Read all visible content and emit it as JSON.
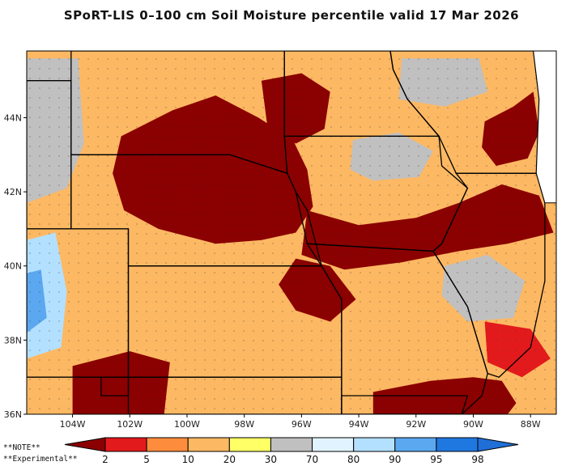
{
  "title": "SPoRT-LIS 0–100 cm Soil Moisture percentile valid 17 Mar 2026",
  "map": {
    "lon_range": [
      -105.6,
      -87.1
    ],
    "lat_range": [
      36.0,
      45.8
    ],
    "lat_ticks": [
      {
        "value": 36,
        "label": "36N"
      },
      {
        "value": 38,
        "label": "38N"
      },
      {
        "value": 40,
        "label": "40N"
      },
      {
        "value": 42,
        "label": "42N"
      },
      {
        "value": 44,
        "label": "44N"
      }
    ],
    "lon_ticks": [
      {
        "value": -104,
        "label": "104W"
      },
      {
        "value": -102,
        "label": "102W"
      },
      {
        "value": -100,
        "label": "100W"
      },
      {
        "value": -98,
        "label": "98W"
      },
      {
        "value": -96,
        "label": "96W"
      },
      {
        "value": -94,
        "label": "94W"
      },
      {
        "value": -92,
        "label": "92W"
      },
      {
        "value": -90,
        "label": "90W"
      },
      {
        "value": -88,
        "label": "88W"
      }
    ],
    "background_color": "#fdb863",
    "lake_color": "#ffffff",
    "regions": [
      {
        "name": "dry-core-south-dakota-nebraska",
        "color": "#8b0000",
        "poly": [
          [
            -102.3,
            43.5
          ],
          [
            -100.5,
            44.2
          ],
          [
            -99.0,
            44.6
          ],
          [
            -97.5,
            44.0
          ],
          [
            -96.3,
            43.4
          ],
          [
            -95.8,
            42.6
          ],
          [
            -95.6,
            41.6
          ],
          [
            -96.2,
            40.9
          ],
          [
            -97.4,
            40.7
          ],
          [
            -99.0,
            40.6
          ],
          [
            -101.0,
            41.0
          ],
          [
            -102.2,
            41.5
          ],
          [
            -102.6,
            42.5
          ]
        ]
      },
      {
        "name": "dry-core-mid-minnesota",
        "color": "#8b0000",
        "poly": [
          [
            -97.4,
            45.0
          ],
          [
            -96.0,
            45.2
          ],
          [
            -95.0,
            44.7
          ],
          [
            -95.2,
            43.7
          ],
          [
            -96.2,
            43.3
          ],
          [
            -97.2,
            43.8
          ]
        ]
      },
      {
        "name": "dry-band-iowa-illinois",
        "color": "#8b0000",
        "poly": [
          [
            -95.8,
            41.5
          ],
          [
            -94.0,
            41.1
          ],
          [
            -92.0,
            41.3
          ],
          [
            -90.5,
            41.7
          ],
          [
            -89.0,
            42.2
          ],
          [
            -87.7,
            41.9
          ],
          [
            -87.2,
            40.9
          ],
          [
            -88.8,
            40.6
          ],
          [
            -90.5,
            40.4
          ],
          [
            -92.5,
            40.1
          ],
          [
            -94.5,
            39.9
          ],
          [
            -96.0,
            40.3
          ]
        ]
      },
      {
        "name": "dry-core-kansas-missouri",
        "color": "#8b0000",
        "poly": [
          [
            -96.2,
            40.2
          ],
          [
            -95.0,
            40.0
          ],
          [
            -94.1,
            39.1
          ],
          [
            -95.0,
            38.5
          ],
          [
            -96.2,
            38.8
          ],
          [
            -96.8,
            39.5
          ]
        ]
      },
      {
        "name": "dry-core-south",
        "color": "#8b0000",
        "poly": [
          [
            -104.0,
            37.3
          ],
          [
            -102.0,
            37.7
          ],
          [
            -100.6,
            37.4
          ],
          [
            -100.8,
            36.0
          ],
          [
            -104.0,
            36.0
          ]
        ]
      },
      {
        "name": "dry-core-bootheel",
        "color": "#8b0000",
        "poly": [
          [
            -93.5,
            36.6
          ],
          [
            -91.5,
            36.9
          ],
          [
            -90.0,
            37.0
          ],
          [
            -89.0,
            36.9
          ],
          [
            -88.5,
            36.3
          ],
          [
            -88.8,
            36.0
          ],
          [
            -93.5,
            36.0
          ]
        ]
      },
      {
        "name": "dry-east-wisconsin",
        "color": "#8b0000",
        "poly": [
          [
            -89.6,
            43.9
          ],
          [
            -88.6,
            44.3
          ],
          [
            -87.9,
            44.7
          ],
          [
            -87.7,
            43.6
          ],
          [
            -88.1,
            42.9
          ],
          [
            -89.2,
            42.7
          ],
          [
            -89.7,
            43.2
          ]
        ]
      },
      {
        "name": "moist-west-colorado",
        "color": "#c0c0c0",
        "poly": [
          [
            -105.6,
            45.6
          ],
          [
            -103.8,
            45.6
          ],
          [
            -103.6,
            43.3
          ],
          [
            -104.2,
            42.1
          ],
          [
            -105.6,
            41.7
          ]
        ]
      },
      {
        "name": "moist-colorado-blue",
        "color": "#b3e0ff",
        "poly": [
          [
            -105.6,
            40.7
          ],
          [
            -104.6,
            40.9
          ],
          [
            -104.2,
            39.3
          ],
          [
            -104.4,
            37.8
          ],
          [
            -105.6,
            37.5
          ]
        ]
      },
      {
        "name": "wet-colorado-core",
        "color": "#5ba8f0",
        "poly": [
          [
            -105.6,
            39.8
          ],
          [
            -105.1,
            39.9
          ],
          [
            -104.9,
            38.6
          ],
          [
            -105.6,
            38.2
          ]
        ]
      },
      {
        "name": "moist-east-iowa",
        "color": "#c0c0c0",
        "poly": [
          [
            -94.2,
            43.4
          ],
          [
            -92.6,
            43.6
          ],
          [
            -91.4,
            43.1
          ],
          [
            -91.9,
            42.4
          ],
          [
            -93.5,
            42.3
          ],
          [
            -94.3,
            42.6
          ]
        ]
      },
      {
        "name": "moist-illinois",
        "color": "#c0c0c0",
        "poly": [
          [
            -91.0,
            40.0
          ],
          [
            -89.5,
            40.3
          ],
          [
            -88.2,
            39.6
          ],
          [
            -88.6,
            38.6
          ],
          [
            -90.2,
            38.5
          ],
          [
            -91.1,
            39.2
          ]
        ]
      },
      {
        "name": "moist-north-wisconsin",
        "color": "#c0c0c0",
        "poly": [
          [
            -92.5,
            45.6
          ],
          [
            -89.8,
            45.6
          ],
          [
            -89.5,
            44.7
          ],
          [
            -91.0,
            44.3
          ],
          [
            -92.6,
            44.5
          ]
        ]
      },
      {
        "name": "dry-south-illinois",
        "color": "#e31a1c",
        "poly": [
          [
            -89.6,
            38.5
          ],
          [
            -88.0,
            38.3
          ],
          [
            -87.3,
            37.5
          ],
          [
            -88.3,
            37.0
          ],
          [
            -89.5,
            37.4
          ]
        ]
      }
    ],
    "states": [
      {
        "name": "colorado",
        "poly": [
          [
            -102.05,
            41.0
          ],
          [
            -102.05,
            37.0
          ],
          [
            -105.6,
            37.0
          ],
          [
            -105.6,
            41.0
          ]
        ]
      },
      {
        "name": "wyoming",
        "poly": [
          [
            -104.05,
            45.0
          ],
          [
            -104.05,
            41.0
          ],
          [
            -105.6,
            41.0
          ],
          [
            -105.6,
            45.0
          ]
        ]
      },
      {
        "name": "kansas",
        "poly": [
          [
            -102.05,
            40.0
          ],
          [
            -95.3,
            40.0
          ],
          [
            -94.6,
            39.1
          ],
          [
            -94.6,
            37.0
          ],
          [
            -102.05,
            37.0
          ]
        ]
      },
      {
        "name": "nebraska",
        "poly": [
          [
            -104.05,
            43.0
          ],
          [
            -98.5,
            43.0
          ],
          [
            -96.5,
            42.5
          ],
          [
            -96.2,
            42.0
          ],
          [
            -95.8,
            41.5
          ],
          [
            -95.3,
            40.0
          ],
          [
            -102.05,
            40.0
          ],
          [
            -102.05,
            41.0
          ],
          [
            -104.05,
            41.0
          ]
        ]
      },
      {
        "name": "south-dakota",
        "poly": [
          [
            -104.05,
            45.8
          ],
          [
            -96.6,
            45.8
          ],
          [
            -96.6,
            43.5
          ],
          [
            -96.5,
            42.5
          ],
          [
            -98.5,
            43.0
          ],
          [
            -104.05,
            43.0
          ]
        ]
      },
      {
        "name": "iowa",
        "poly": [
          [
            -96.6,
            43.5
          ],
          [
            -91.2,
            43.5
          ],
          [
            -91.1,
            42.7
          ],
          [
            -90.2,
            42.1
          ],
          [
            -91.1,
            40.6
          ],
          [
            -91.4,
            40.4
          ],
          [
            -95.8,
            40.6
          ],
          [
            -96.2,
            42.0
          ],
          [
            -96.5,
            42.5
          ]
        ]
      },
      {
        "name": "missouri",
        "poly": [
          [
            -95.8,
            40.6
          ],
          [
            -91.4,
            40.4
          ],
          [
            -90.2,
            38.9
          ],
          [
            -89.5,
            37.1
          ],
          [
            -89.7,
            36.5
          ],
          [
            -90.4,
            36.0
          ],
          [
            -94.6,
            36.0
          ],
          [
            -94.6,
            39.1
          ],
          [
            -95.3,
            40.0
          ]
        ]
      },
      {
        "name": "illinois",
        "poly": [
          [
            -90.6,
            42.5
          ],
          [
            -87.8,
            42.5
          ],
          [
            -87.5,
            41.7
          ],
          [
            -87.5,
            39.6
          ],
          [
            -88.0,
            37.8
          ],
          [
            -89.1,
            37.0
          ],
          [
            -89.5,
            37.1
          ],
          [
            -90.2,
            38.9
          ],
          [
            -91.4,
            40.4
          ],
          [
            -91.1,
            40.6
          ],
          [
            -90.2,
            42.1
          ]
        ]
      },
      {
        "name": "wisconsin",
        "poly": [
          [
            -92.9,
            45.8
          ],
          [
            -87.9,
            45.8
          ],
          [
            -87.7,
            44.5
          ],
          [
            -87.8,
            42.5
          ],
          [
            -90.6,
            42.5
          ],
          [
            -91.2,
            43.5
          ],
          [
            -92.3,
            44.5
          ],
          [
            -92.8,
            45.3
          ]
        ]
      },
      {
        "name": "minnesota",
        "poly": [
          [
            -96.6,
            45.8
          ],
          [
            -92.9,
            45.8
          ],
          [
            -92.8,
            45.3
          ],
          [
            -92.3,
            44.5
          ],
          [
            -91.2,
            43.5
          ],
          [
            -96.6,
            43.5
          ]
        ]
      },
      {
        "name": "oklahoma",
        "poly": [
          [
            -102.05,
            37.0
          ],
          [
            -94.6,
            37.0
          ],
          [
            -94.6,
            36.0
          ],
          [
            -102.05,
            36.0
          ]
        ]
      },
      {
        "name": "oklahoma-panhandle",
        "poly": [
          [
            -103.0,
            37.0
          ],
          [
            -102.05,
            37.0
          ],
          [
            -102.05,
            36.5
          ],
          [
            -103.0,
            36.5
          ]
        ]
      },
      {
        "name": "arkansas",
        "poly": [
          [
            -94.6,
            36.5
          ],
          [
            -90.2,
            36.5
          ],
          [
            -90.4,
            36.0
          ],
          [
            -94.6,
            36.0
          ]
        ]
      }
    ],
    "lake_michigan": [
      [
        -87.9,
        45.8
      ],
      [
        -87.1,
        45.8
      ],
      [
        -87.1,
        41.7
      ],
      [
        -87.5,
        41.7
      ],
      [
        -87.8,
        42.5
      ],
      [
        -87.7,
        44.5
      ]
    ]
  },
  "legend": {
    "labels": [
      "2",
      "5",
      "10",
      "20",
      "30",
      "70",
      "80",
      "90",
      "95",
      "98"
    ],
    "colors": [
      "#8b0000",
      "#e31a1c",
      "#fd8d3c",
      "#fdb863",
      "#ffff66",
      "#c0c0c0",
      "#e0f3ff",
      "#b3e0ff",
      "#5ba8f0",
      "#1f78e0",
      "#1f6fd6"
    ],
    "note_line1": "**NOTE**",
    "note_line2": "**Experimental**"
  }
}
